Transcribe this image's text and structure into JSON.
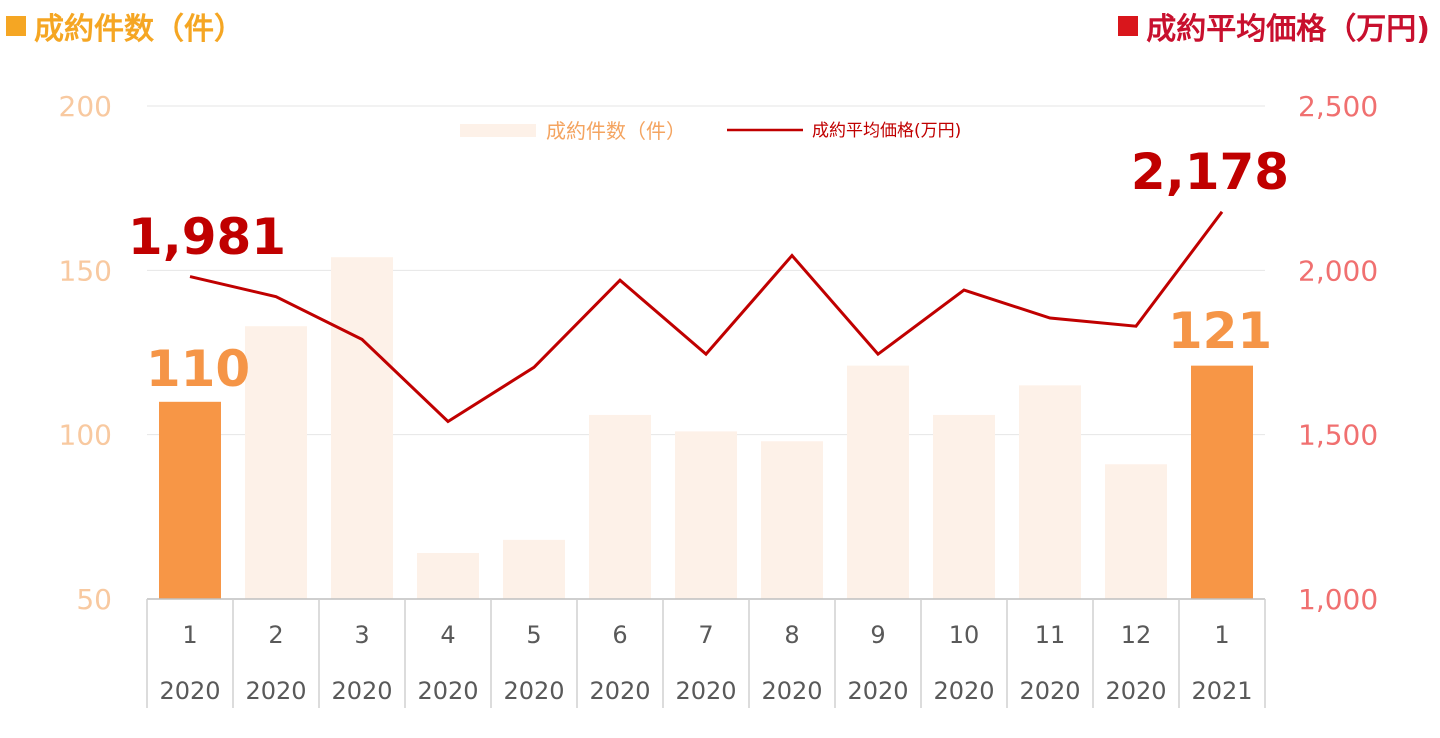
{
  "header": {
    "left_title": "成約件数（件）",
    "right_title": "成約平均価格（万円)"
  },
  "legend": {
    "bar_label": "成約件数（件）",
    "line_label": "成約平均価格(万円)"
  },
  "colors": {
    "bar_highlight": "#f79646",
    "bar_muted": "#fdf1e8",
    "line": "#c00000",
    "left_axis": "#f8c9a0",
    "right_axis": "#f07070",
    "header_left": "#f5a623",
    "header_right": "#c8102e"
  },
  "chart_data": {
    "type": "bar+line",
    "categories": [
      "1",
      "2",
      "3",
      "4",
      "5",
      "6",
      "7",
      "8",
      "9",
      "10",
      "11",
      "12",
      "1"
    ],
    "years": [
      "2020",
      "2020",
      "2020",
      "2020",
      "2020",
      "2020",
      "2020",
      "2020",
      "2020",
      "2020",
      "2020",
      "2020",
      "2021"
    ],
    "series": [
      {
        "name": "成約件数（件）",
        "type": "bar",
        "axis": "left",
        "values": [
          110,
          133,
          154,
          64,
          68,
          106,
          101,
          98,
          121,
          106,
          115,
          91,
          121
        ],
        "highlight": [
          true,
          false,
          false,
          false,
          false,
          false,
          false,
          false,
          false,
          false,
          false,
          false,
          true
        ]
      },
      {
        "name": "成約平均価格(万円)",
        "type": "line",
        "axis": "right",
        "values": [
          1981,
          1920,
          1790,
          1540,
          1705,
          1970,
          1745,
          2045,
          1745,
          1940,
          1855,
          1830,
          2178
        ]
      }
    ],
    "y_left": {
      "min": 50,
      "max": 200,
      "ticks": [
        "200",
        "150",
        "100",
        "50"
      ]
    },
    "y_right": {
      "min": 1000,
      "max": 2500,
      "ticks": [
        "2,500",
        "2,000",
        "1,500",
        "1,000"
      ]
    },
    "annotations": [
      {
        "series": "price",
        "index": 0,
        "text": "1,981"
      },
      {
        "series": "price",
        "index": 12,
        "text": "2,178"
      },
      {
        "series": "count",
        "index": 0,
        "text": "110"
      },
      {
        "series": "count",
        "index": 12,
        "text": "121"
      }
    ],
    "grid": true
  }
}
